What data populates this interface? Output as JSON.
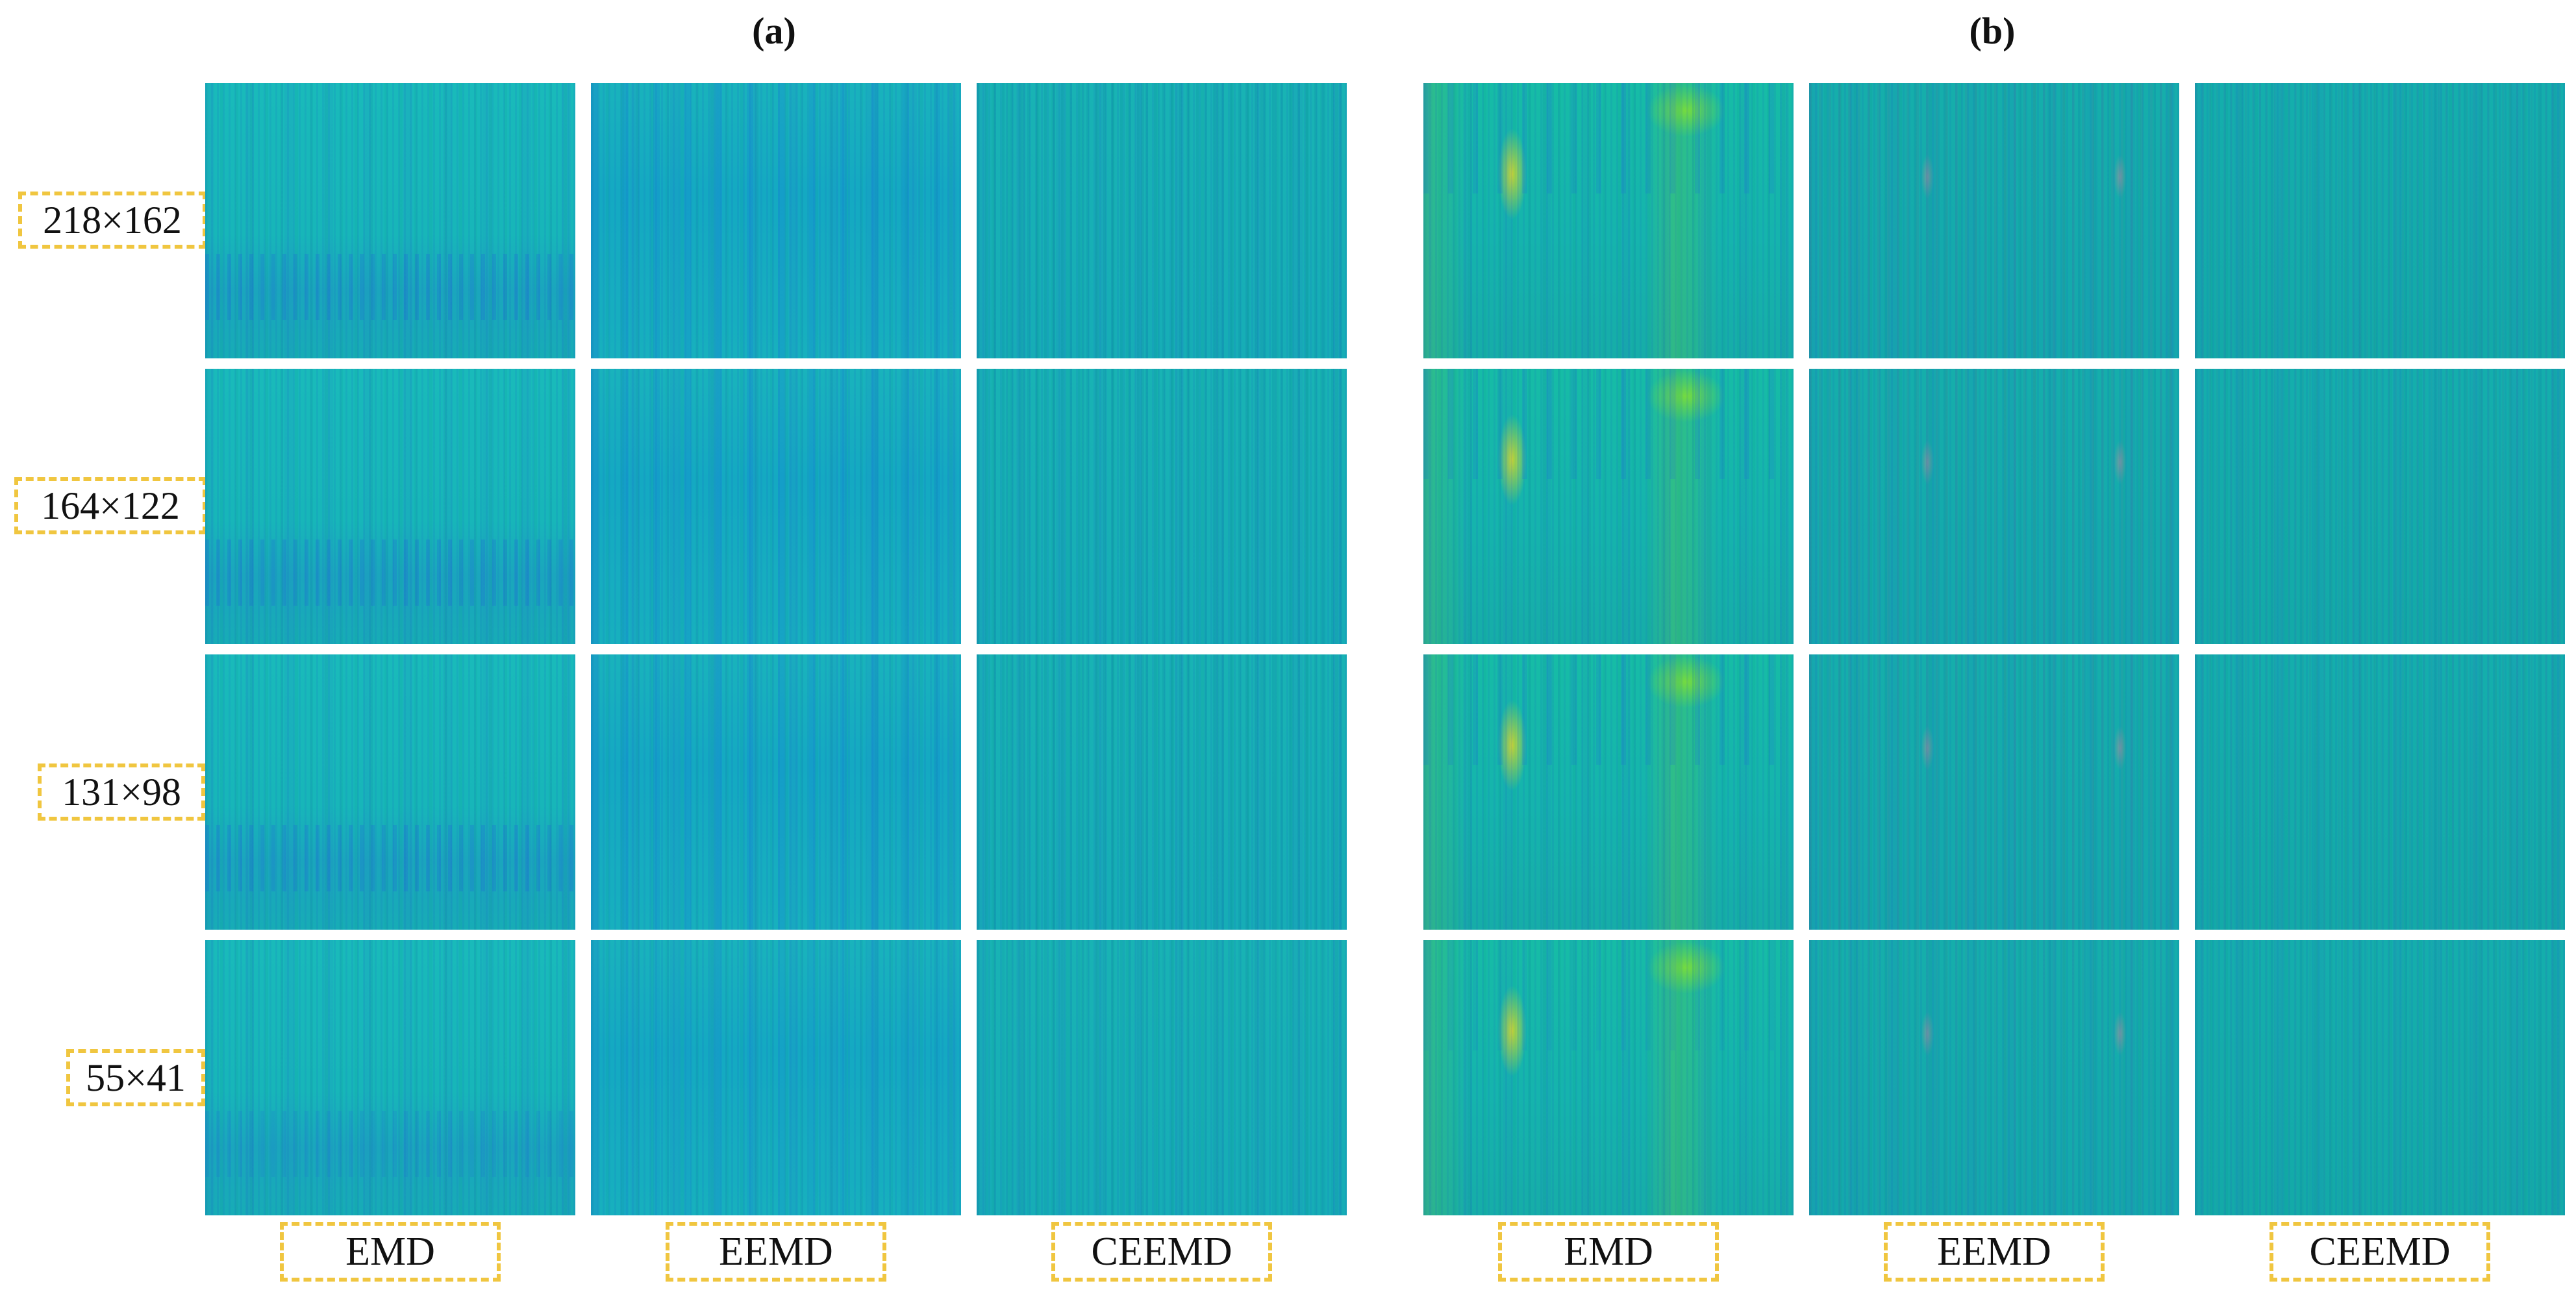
{
  "panels": [
    {
      "title": "(a)"
    },
    {
      "title": "(b)"
    }
  ],
  "row_labels": [
    "218×162",
    "164×122",
    "131×98",
    "55×41"
  ],
  "column_labels": {
    "a": [
      "EMD",
      "EEMD",
      "CEEMD"
    ],
    "b": [
      "EMD",
      "EEMD",
      "CEEMD"
    ]
  },
  "colors": {
    "label_border": "#f0c640",
    "tile_base": "#0fb5b5",
    "highlight_yellow": "#dcdc28",
    "highlight_green": "#78dc3c"
  }
}
